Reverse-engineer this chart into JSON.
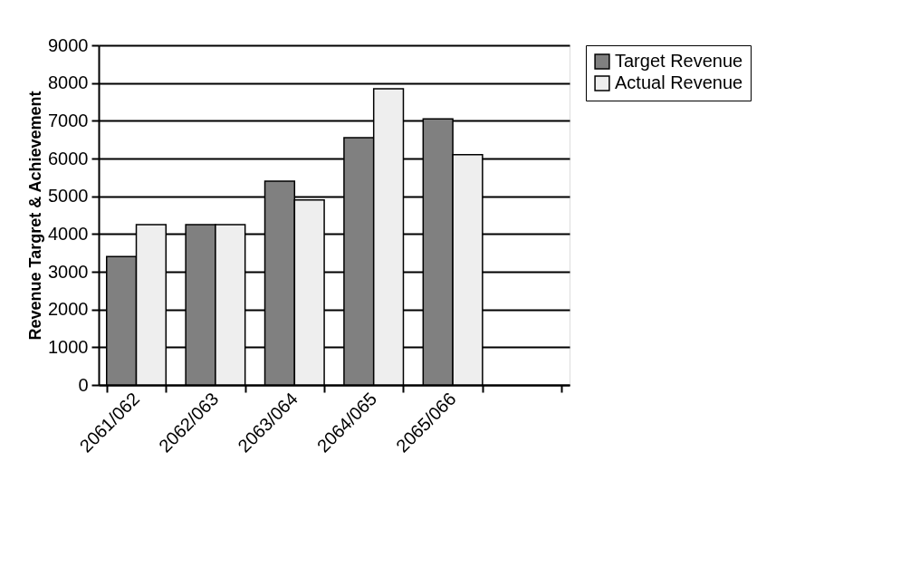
{
  "chart_data": {
    "type": "bar",
    "ylabel": "Revenue Targret & Achievement",
    "categories": [
      "2061/062",
      "2062/063",
      "2063/064",
      "2064/065",
      "2065/066",
      null
    ],
    "series": [
      {
        "name": "Target Revenue",
        "color": "#808080",
        "values": [
          3400,
          4250,
          5400,
          6550,
          7050,
          null
        ]
      },
      {
        "name": "Actual Revenue",
        "color": "#eeeeee",
        "values": [
          4250,
          4250,
          4900,
          7850,
          6100,
          null
        ]
      }
    ],
    "ylim": [
      0,
      9000
    ],
    "yticks": [
      0,
      1000,
      2000,
      3000,
      4000,
      5000,
      6000,
      7000,
      8000,
      9000
    ],
    "grid": "y",
    "legend": "right"
  }
}
